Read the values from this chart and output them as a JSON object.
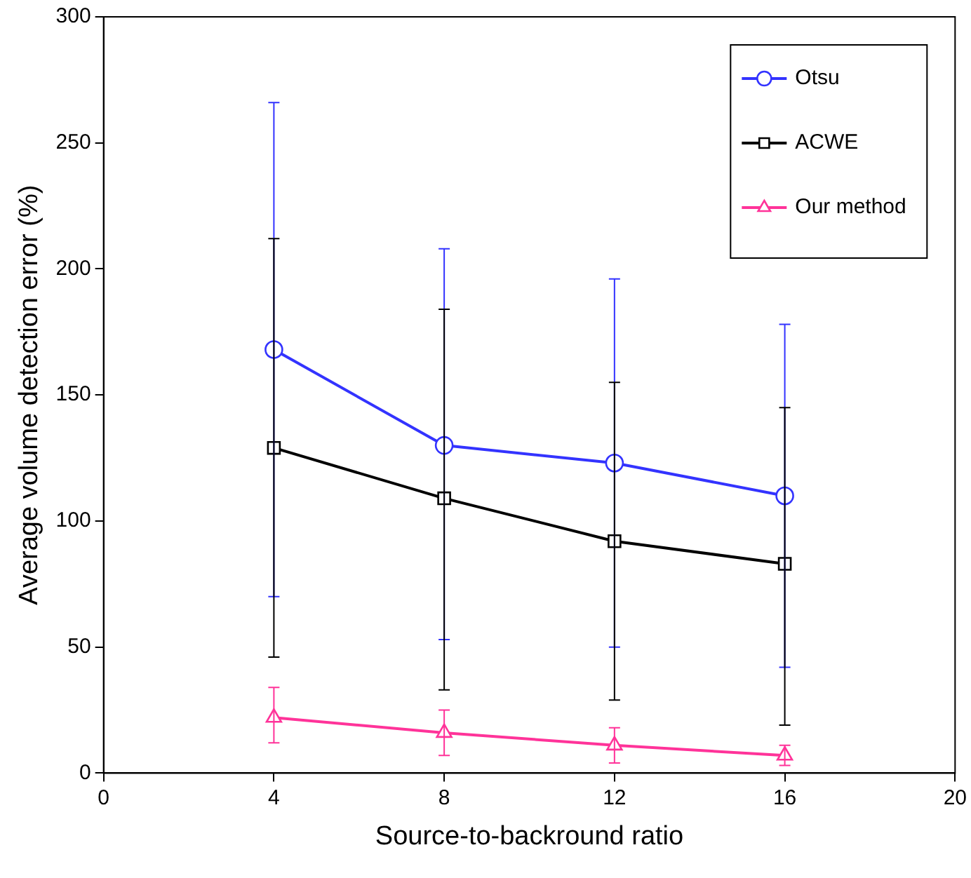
{
  "chart_data": {
    "type": "line",
    "xlabel": "Source-to-backround ratio",
    "ylabel": "Average volume detection error (%)",
    "x": [
      4,
      8,
      12,
      16
    ],
    "xlim": [
      0,
      20
    ],
    "xticks": [
      0,
      4,
      8,
      12,
      16,
      20
    ],
    "ylim": [
      0,
      300
    ],
    "yticks": [
      0,
      50,
      100,
      150,
      200,
      250,
      300
    ],
    "grid": false,
    "legend": "top right",
    "line_style": "solid",
    "series": [
      {
        "name": "Otsu",
        "color": "#3333ff",
        "marker": "circle",
        "values": [
          168,
          130,
          123,
          110
        ],
        "errors": [
          [
            70,
            266
          ],
          [
            53,
            208
          ],
          [
            50,
            196
          ],
          [
            42,
            178
          ]
        ]
      },
      {
        "name": "ACWE",
        "color": "#000000",
        "marker": "square",
        "values": [
          129,
          109,
          92,
          83
        ],
        "errors": [
          [
            46,
            212
          ],
          [
            33,
            184
          ],
          [
            29,
            155
          ],
          [
            19,
            145
          ]
        ]
      },
      {
        "name": "Our method",
        "color": "#ff3399",
        "marker": "triangle",
        "values": [
          22,
          16,
          11,
          7
        ],
        "errors": [
          [
            12,
            34
          ],
          [
            7,
            25
          ],
          [
            4,
            18
          ],
          [
            3,
            11
          ]
        ]
      }
    ]
  }
}
